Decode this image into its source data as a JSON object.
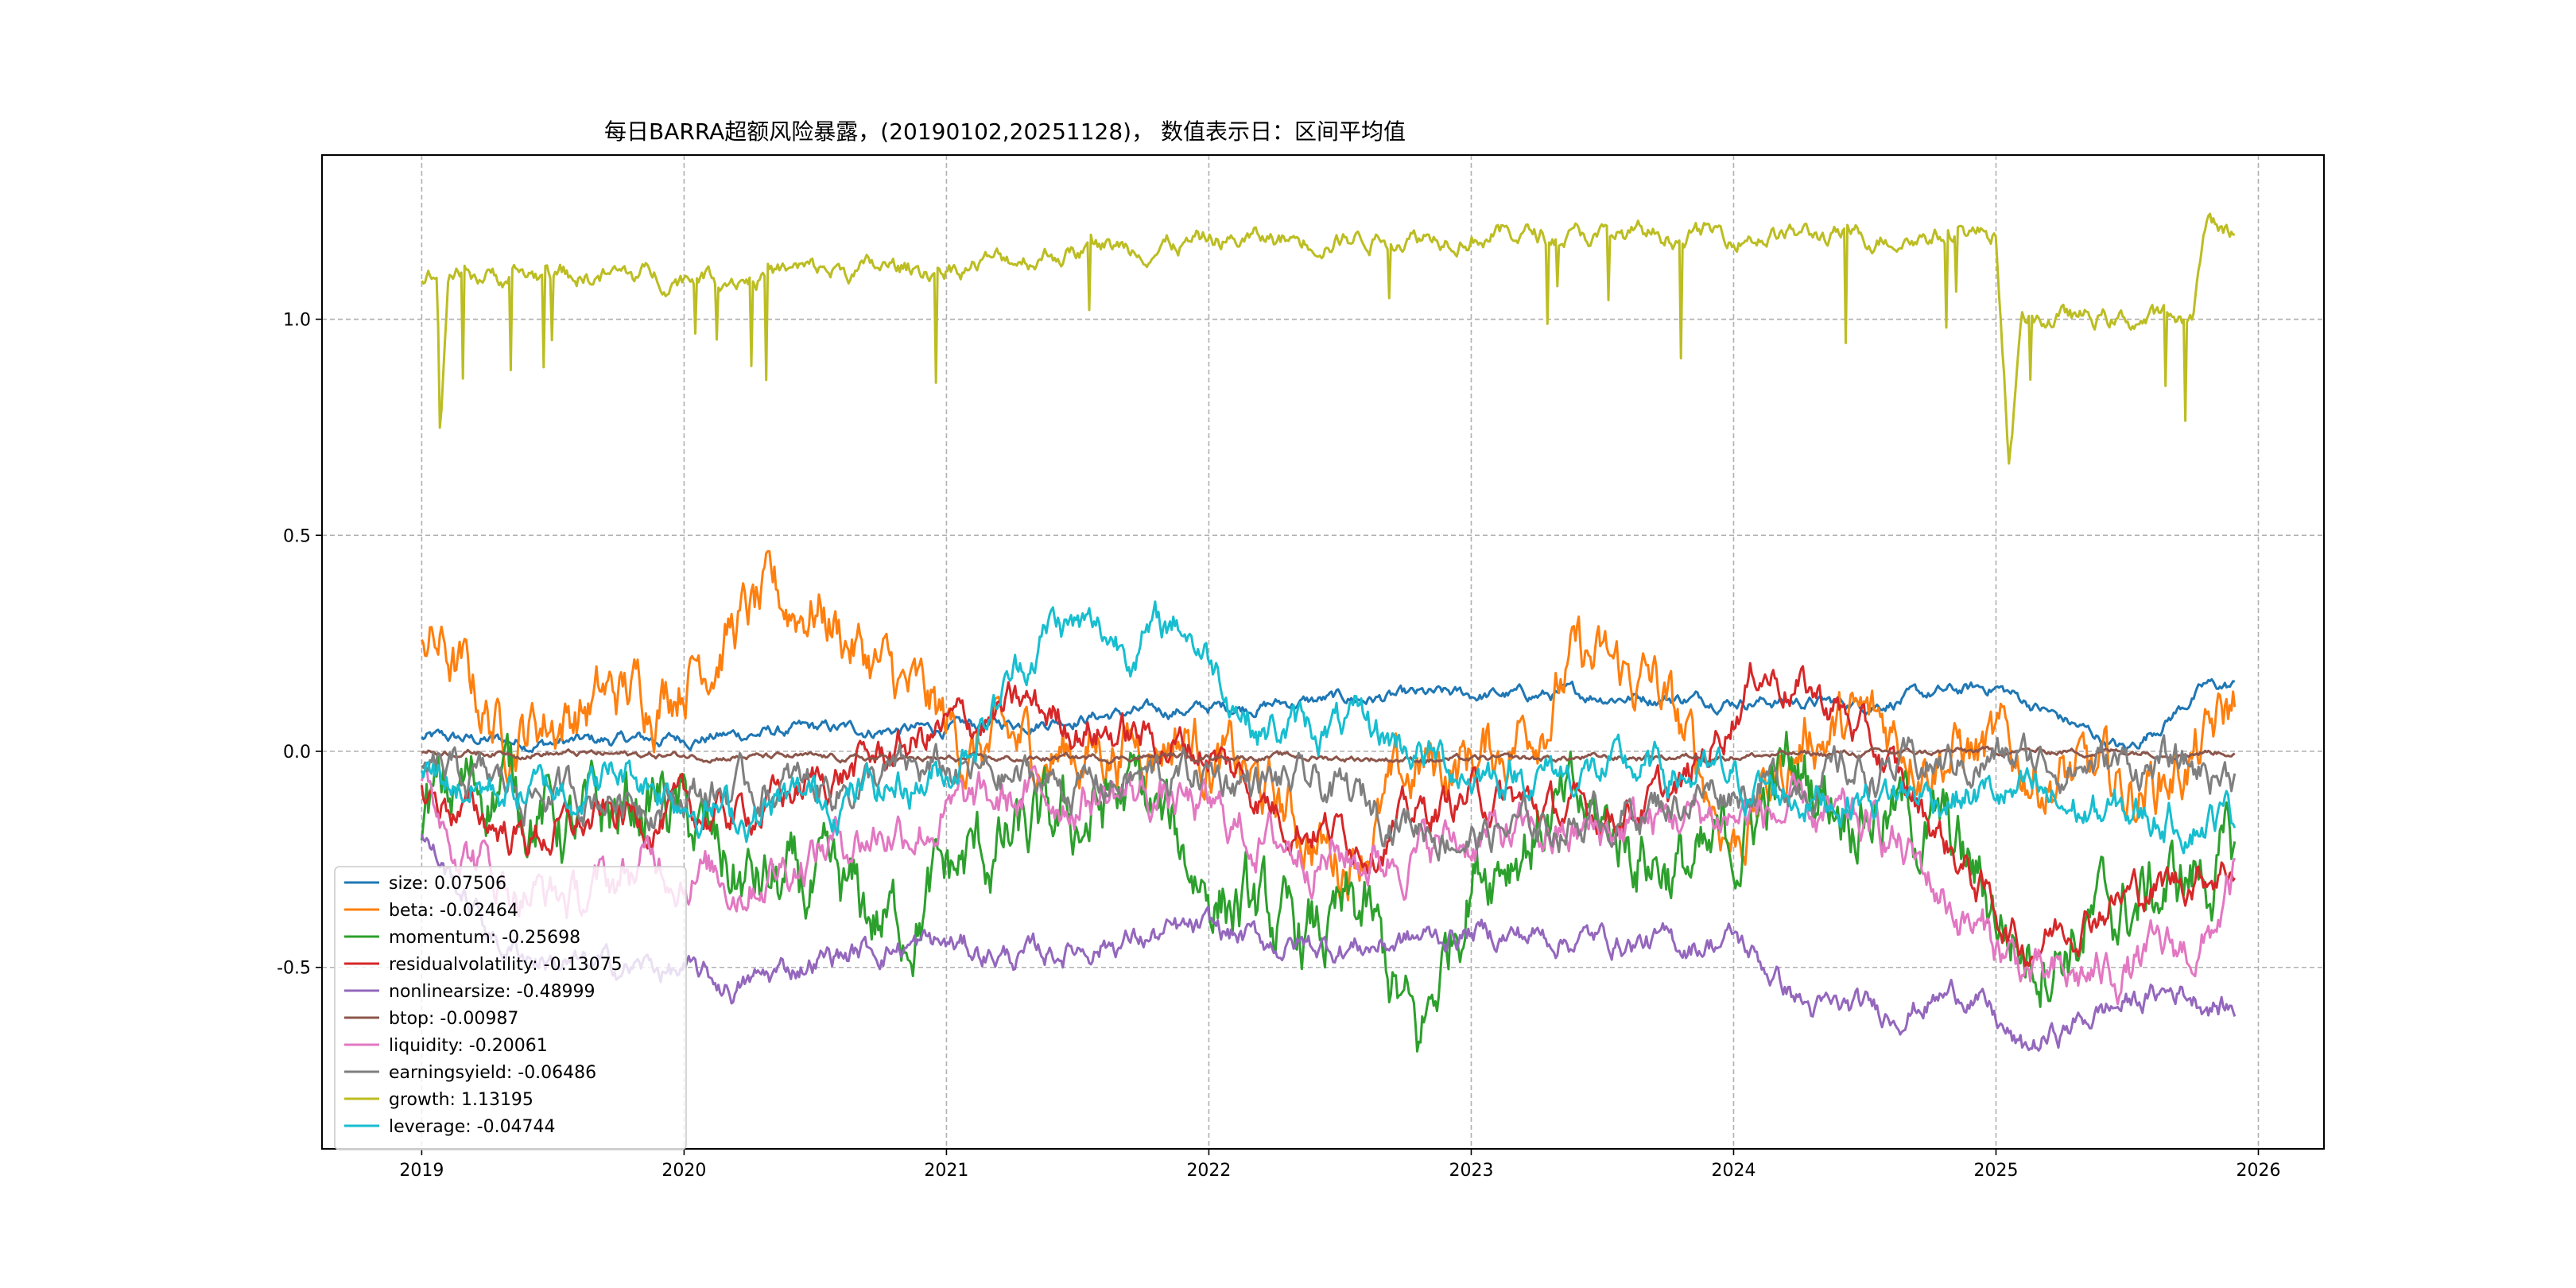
{
  "chart_data": {
    "type": "line",
    "title": "每日BARRA超额风险暴露，(20190102,20251128)， 数值表示日：区间平均值",
    "xlabel": "",
    "ylabel": "",
    "xlim": [
      2018.62,
      2026.25
    ],
    "ylim": [
      -0.92,
      1.38
    ],
    "x_ticks": [
      2019,
      2020,
      2021,
      2022,
      2023,
      2024,
      2025,
      2026
    ],
    "x_tick_labels": [
      "2019",
      "2020",
      "2021",
      "2022",
      "2023",
      "2024",
      "2025",
      "2026"
    ],
    "y_ticks": [
      -0.5,
      0.0,
      0.5,
      1.0
    ],
    "y_tick_labels": [
      "-0.5",
      "0.0",
      "0.5",
      "1.0"
    ],
    "grid": true,
    "legend_position": "lower-left",
    "x_range": [
      2019.0,
      2025.91
    ],
    "series": [
      {
        "name": "size",
        "legend": "size: 0.07506",
        "mean": 0.07506,
        "color": "#1f77b4",
        "x": [
          2019.0,
          2019.5,
          2020.0,
          2020.5,
          2021.0,
          2021.5,
          2022.0,
          2022.5,
          2023.0,
          2023.5,
          2024.0,
          2024.5,
          2025.0,
          2025.5,
          2025.8,
          2025.91
        ],
        "y": [
          0.03,
          0.02,
          0.03,
          0.05,
          0.05,
          0.08,
          0.1,
          0.12,
          0.13,
          0.13,
          0.12,
          0.11,
          0.15,
          0.0,
          0.15,
          0.15
        ]
      },
      {
        "name": "beta",
        "legend": "beta: -0.02464",
        "mean": -0.02464,
        "color": "#ff7f0e",
        "x": [
          2019.0,
          2019.3,
          2019.6,
          2019.9,
          2020.2,
          2020.5,
          2020.8,
          2021.1,
          2021.5,
          2021.9,
          2022.2,
          2022.5,
          2022.8,
          2023.1,
          2023.4,
          2023.7,
          2024.0,
          2024.3,
          2024.6,
          2024.9,
          2025.2,
          2025.5,
          2025.8,
          2025.91
        ],
        "y": [
          0.3,
          0.05,
          0.1,
          0.15,
          0.3,
          0.35,
          0.15,
          0.0,
          0.0,
          0.05,
          -0.1,
          -0.25,
          -0.05,
          0.0,
          0.2,
          0.15,
          -0.2,
          0.05,
          0.05,
          0.0,
          -0.05,
          -0.1,
          0.0,
          0.1
        ]
      },
      {
        "name": "momentum",
        "legend": "momentum: -0.25698",
        "mean": -0.25698,
        "color": "#2ca02c",
        "x": [
          2019.0,
          2019.3,
          2019.6,
          2019.9,
          2020.2,
          2020.5,
          2020.8,
          2021.1,
          2021.4,
          2021.7,
          2022.0,
          2022.3,
          2022.6,
          2022.8,
          2023.0,
          2023.3,
          2023.6,
          2023.9,
          2024.2,
          2024.5,
          2024.8,
          2025.1,
          2025.4,
          2025.7,
          2025.91
        ],
        "y": [
          -0.15,
          -0.05,
          -0.2,
          -0.1,
          -0.3,
          -0.35,
          -0.4,
          -0.25,
          -0.2,
          -0.1,
          -0.3,
          -0.45,
          -0.4,
          -0.7,
          -0.25,
          -0.15,
          -0.2,
          -0.3,
          -0.05,
          -0.1,
          -0.2,
          -0.45,
          -0.4,
          -0.3,
          -0.25
        ]
      },
      {
        "name": "residualvolatility",
        "legend": "residualvolatility: -0.13075",
        "mean": -0.13075,
        "color": "#d62728",
        "x": [
          2019.0,
          2019.4,
          2019.8,
          2020.2,
          2020.6,
          2021.0,
          2021.3,
          2021.6,
          2022.0,
          2022.3,
          2022.6,
          2023.0,
          2023.4,
          2023.8,
          2024.1,
          2024.4,
          2024.8,
          2025.1,
          2025.4,
          2025.7,
          2025.91
        ],
        "y": [
          -0.1,
          -0.2,
          -0.15,
          -0.15,
          -0.05,
          0.05,
          0.1,
          0.05,
          0.0,
          -0.15,
          -0.2,
          -0.1,
          -0.15,
          -0.1,
          0.2,
          0.1,
          -0.2,
          -0.45,
          -0.35,
          -0.3,
          -0.25
        ]
      },
      {
        "name": "nonlinearsize",
        "legend": "nonlinearsize: -0.48999",
        "mean": -0.48999,
        "color": "#9467bd",
        "x": [
          2019.0,
          2019.3,
          2019.6,
          2019.9,
          2020.2,
          2020.5,
          2020.8,
          2021.0,
          2021.3,
          2021.6,
          2022.0,
          2022.3,
          2022.6,
          2023.0,
          2023.4,
          2023.8,
          2024.0,
          2024.3,
          2024.6,
          2024.9,
          2025.1,
          2025.4,
          2025.7,
          2025.91
        ],
        "y": [
          -0.2,
          -0.45,
          -0.5,
          -0.5,
          -0.55,
          -0.48,
          -0.45,
          -0.45,
          -0.48,
          -0.44,
          -0.42,
          -0.45,
          -0.45,
          -0.42,
          -0.43,
          -0.45,
          -0.43,
          -0.6,
          -0.6,
          -0.55,
          -0.7,
          -0.6,
          -0.55,
          -0.6
        ]
      },
      {
        "name": "btop",
        "legend": "btop: -0.00987",
        "mean": -0.00987,
        "color": "#8c564b",
        "x": [
          2019.0,
          2020.0,
          2021.0,
          2022.0,
          2023.0,
          2024.0,
          2025.0,
          2025.91
        ],
        "y": [
          0.0,
          -0.01,
          -0.02,
          -0.01,
          -0.02,
          -0.01,
          0.0,
          0.0
        ]
      },
      {
        "name": "liquidity",
        "legend": "liquidity: -0.20061",
        "mean": -0.20061,
        "color": "#e377c2",
        "x": [
          2019.0,
          2019.3,
          2019.6,
          2019.9,
          2020.2,
          2020.6,
          2021.0,
          2021.4,
          2021.8,
          2022.2,
          2022.6,
          2023.0,
          2023.4,
          2023.8,
          2024.2,
          2024.6,
          2024.9,
          2025.2,
          2025.5,
          2025.8,
          2025.91
        ],
        "y": [
          -0.1,
          -0.3,
          -0.35,
          -0.25,
          -0.3,
          -0.2,
          -0.15,
          -0.1,
          -0.1,
          -0.2,
          -0.25,
          -0.2,
          -0.2,
          -0.15,
          -0.15,
          -0.2,
          -0.4,
          -0.55,
          -0.5,
          -0.45,
          -0.3
        ]
      },
      {
        "name": "earningsyield",
        "legend": "earningsyield: -0.06486",
        "mean": -0.06486,
        "color": "#7f7f7f",
        "x": [
          2019.0,
          2019.5,
          2020.0,
          2020.5,
          2021.0,
          2021.5,
          2022.0,
          2022.5,
          2023.0,
          2023.5,
          2024.0,
          2024.5,
          2025.0,
          2025.5,
          2025.91
        ],
        "y": [
          -0.05,
          -0.1,
          -0.1,
          -0.08,
          -0.05,
          -0.08,
          -0.05,
          -0.1,
          -0.2,
          -0.15,
          -0.08,
          -0.05,
          -0.02,
          -0.03,
          -0.05
        ]
      },
      {
        "name": "growth",
        "legend": "growth: 1.13195",
        "mean": 1.13195,
        "color": "#bcbd22",
        "x": [
          2019.0,
          2019.06,
          2019.07,
          2019.1,
          2020.0,
          2021.0,
          2021.5,
          2022.0,
          2023.0,
          2023.5,
          2024.0,
          2024.5,
          2025.0,
          2025.05,
          2025.1,
          2025.5,
          2025.75,
          2025.8,
          2025.91
        ],
        "y": [
          1.1,
          1.1,
          0.72,
          1.1,
          1.1,
          1.12,
          1.16,
          1.18,
          1.2,
          1.19,
          1.2,
          1.19,
          1.2,
          0.68,
          1.0,
          1.0,
          1.0,
          1.22,
          1.2
        ]
      },
      {
        "name": "leverage",
        "legend": "leverage: -0.04744",
        "mean": -0.04744,
        "color": "#17becf",
        "x": [
          2019.0,
          2019.4,
          2019.8,
          2020.2,
          2020.6,
          2021.0,
          2021.4,
          2021.7,
          2021.9,
          2022.2,
          2022.6,
          2023.0,
          2023.4,
          2023.8,
          2024.2,
          2024.6,
          2025.0,
          2025.4,
          2025.7,
          2025.91
        ],
        "y": [
          -0.05,
          -0.1,
          -0.05,
          -0.15,
          -0.1,
          -0.05,
          0.3,
          0.25,
          0.3,
          0.05,
          0.05,
          -0.05,
          -0.05,
          -0.05,
          -0.1,
          -0.1,
          -0.1,
          -0.15,
          -0.15,
          -0.15
        ]
      }
    ]
  }
}
